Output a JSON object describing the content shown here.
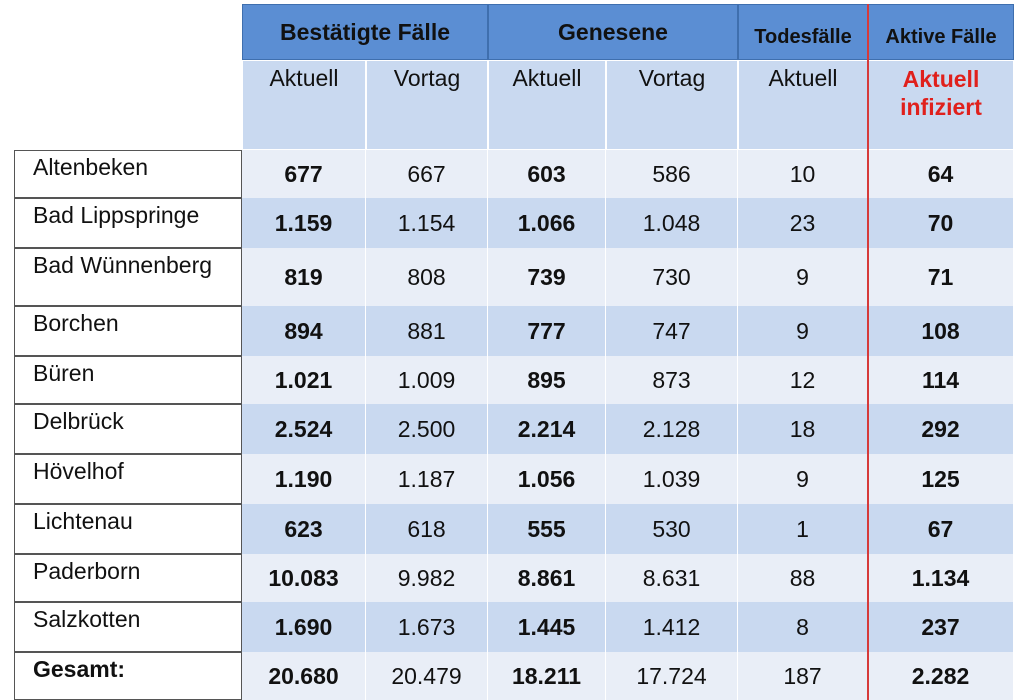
{
  "headers": {
    "confirmed": "Bestätigte Fälle",
    "recovered": "Genesene",
    "deaths": "Todesfälle",
    "active": "Aktive Fälle",
    "sub_current": "Aktuell",
    "sub_previous": "Vortag",
    "sub_active": "Aktuell infiziert"
  },
  "rows": [
    {
      "name": "Altenbeken",
      "c_now": "677",
      "c_prev": "667",
      "r_now": "603",
      "r_prev": "586",
      "d_now": "10",
      "a_now": "64"
    },
    {
      "name": "Bad Lippspringe",
      "c_now": "1.159",
      "c_prev": "1.154",
      "r_now": "1.066",
      "r_prev": "1.048",
      "d_now": "23",
      "a_now": "70"
    },
    {
      "name": "Bad Wünnenberg",
      "c_now": "819",
      "c_prev": "808",
      "r_now": "739",
      "r_prev": "730",
      "d_now": "9",
      "a_now": "71"
    },
    {
      "name": "Borchen",
      "c_now": "894",
      "c_prev": "881",
      "r_now": "777",
      "r_prev": "747",
      "d_now": "9",
      "a_now": "108"
    },
    {
      "name": "Büren",
      "c_now": "1.021",
      "c_prev": "1.009",
      "r_now": "895",
      "r_prev": "873",
      "d_now": "12",
      "a_now": "114"
    },
    {
      "name": "Delbrück",
      "c_now": "2.524",
      "c_prev": "2.500",
      "r_now": "2.214",
      "r_prev": "2.128",
      "d_now": "18",
      "a_now": "292"
    },
    {
      "name": "Hövelhof",
      "c_now": "1.190",
      "c_prev": "1.187",
      "r_now": "1.056",
      "r_prev": "1.039",
      "d_now": "9",
      "a_now": "125"
    },
    {
      "name": "Lichtenau",
      "c_now": "623",
      "c_prev": "618",
      "r_now": "555",
      "r_prev": "530",
      "d_now": "1",
      "a_now": "67"
    },
    {
      "name": "Paderborn",
      "c_now": "10.083",
      "c_prev": "9.982",
      "r_now": "8.861",
      "r_prev": "8.631",
      "d_now": "88",
      "a_now": "1.134"
    },
    {
      "name": "Salzkotten",
      "c_now": "1.690",
      "c_prev": "1.673",
      "r_now": "1.445",
      "r_prev": "1.412",
      "d_now": "8",
      "a_now": "237"
    },
    {
      "name": "Gesamt:",
      "c_now": "20.680",
      "c_prev": "20.479",
      "r_now": "18.211",
      "r_prev": "17.724",
      "d_now": "187",
      "a_now": "2.282"
    }
  ]
}
